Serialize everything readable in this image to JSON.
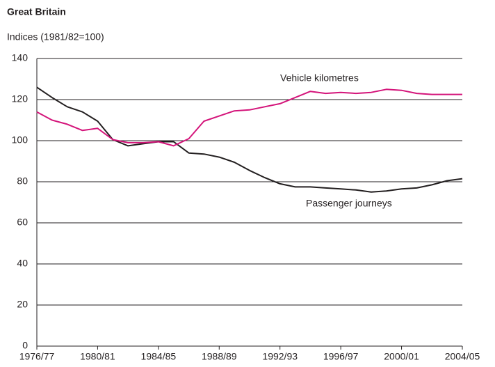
{
  "chart_data": {
    "type": "line",
    "title": "Great Britain",
    "subtitle": "Indices (1981/82=100)",
    "categories": [
      "1976/77",
      null,
      null,
      null,
      "1980/81",
      null,
      null,
      null,
      "1984/85",
      null,
      null,
      null,
      "1988/89",
      null,
      null,
      null,
      "1992/93",
      null,
      null,
      null,
      "1996/97",
      null,
      null,
      null,
      "2000/01",
      null,
      null,
      null,
      "2004/05"
    ],
    "series": [
      {
        "name": "Passenger journeys",
        "color": "#231f20",
        "values": [
          126,
          121,
          116.5,
          114,
          109.5,
          100.5,
          97.5,
          98.5,
          99.5,
          99.5,
          94,
          93.5,
          92,
          89.5,
          85.5,
          82,
          79,
          77.5,
          77.5,
          77,
          76.5,
          76,
          75,
          75.5,
          76.5,
          77,
          78.5,
          80.5,
          81.5
        ]
      },
      {
        "name": "Vehicle kilometres",
        "color": "#d4147a",
        "values": [
          114,
          110,
          108,
          105,
          106,
          100.5,
          99,
          99,
          99.5,
          97.5,
          101,
          109.5,
          112,
          114.5,
          115,
          116.5,
          118,
          121,
          124,
          123,
          123.5,
          123,
          123.5,
          125,
          124.5,
          123,
          122.5,
          122.5,
          122.5
        ]
      }
    ],
    "ylim": [
      0,
      140
    ],
    "yticks": [
      0,
      20,
      40,
      60,
      80,
      100,
      120,
      140
    ],
    "grid": true
  }
}
